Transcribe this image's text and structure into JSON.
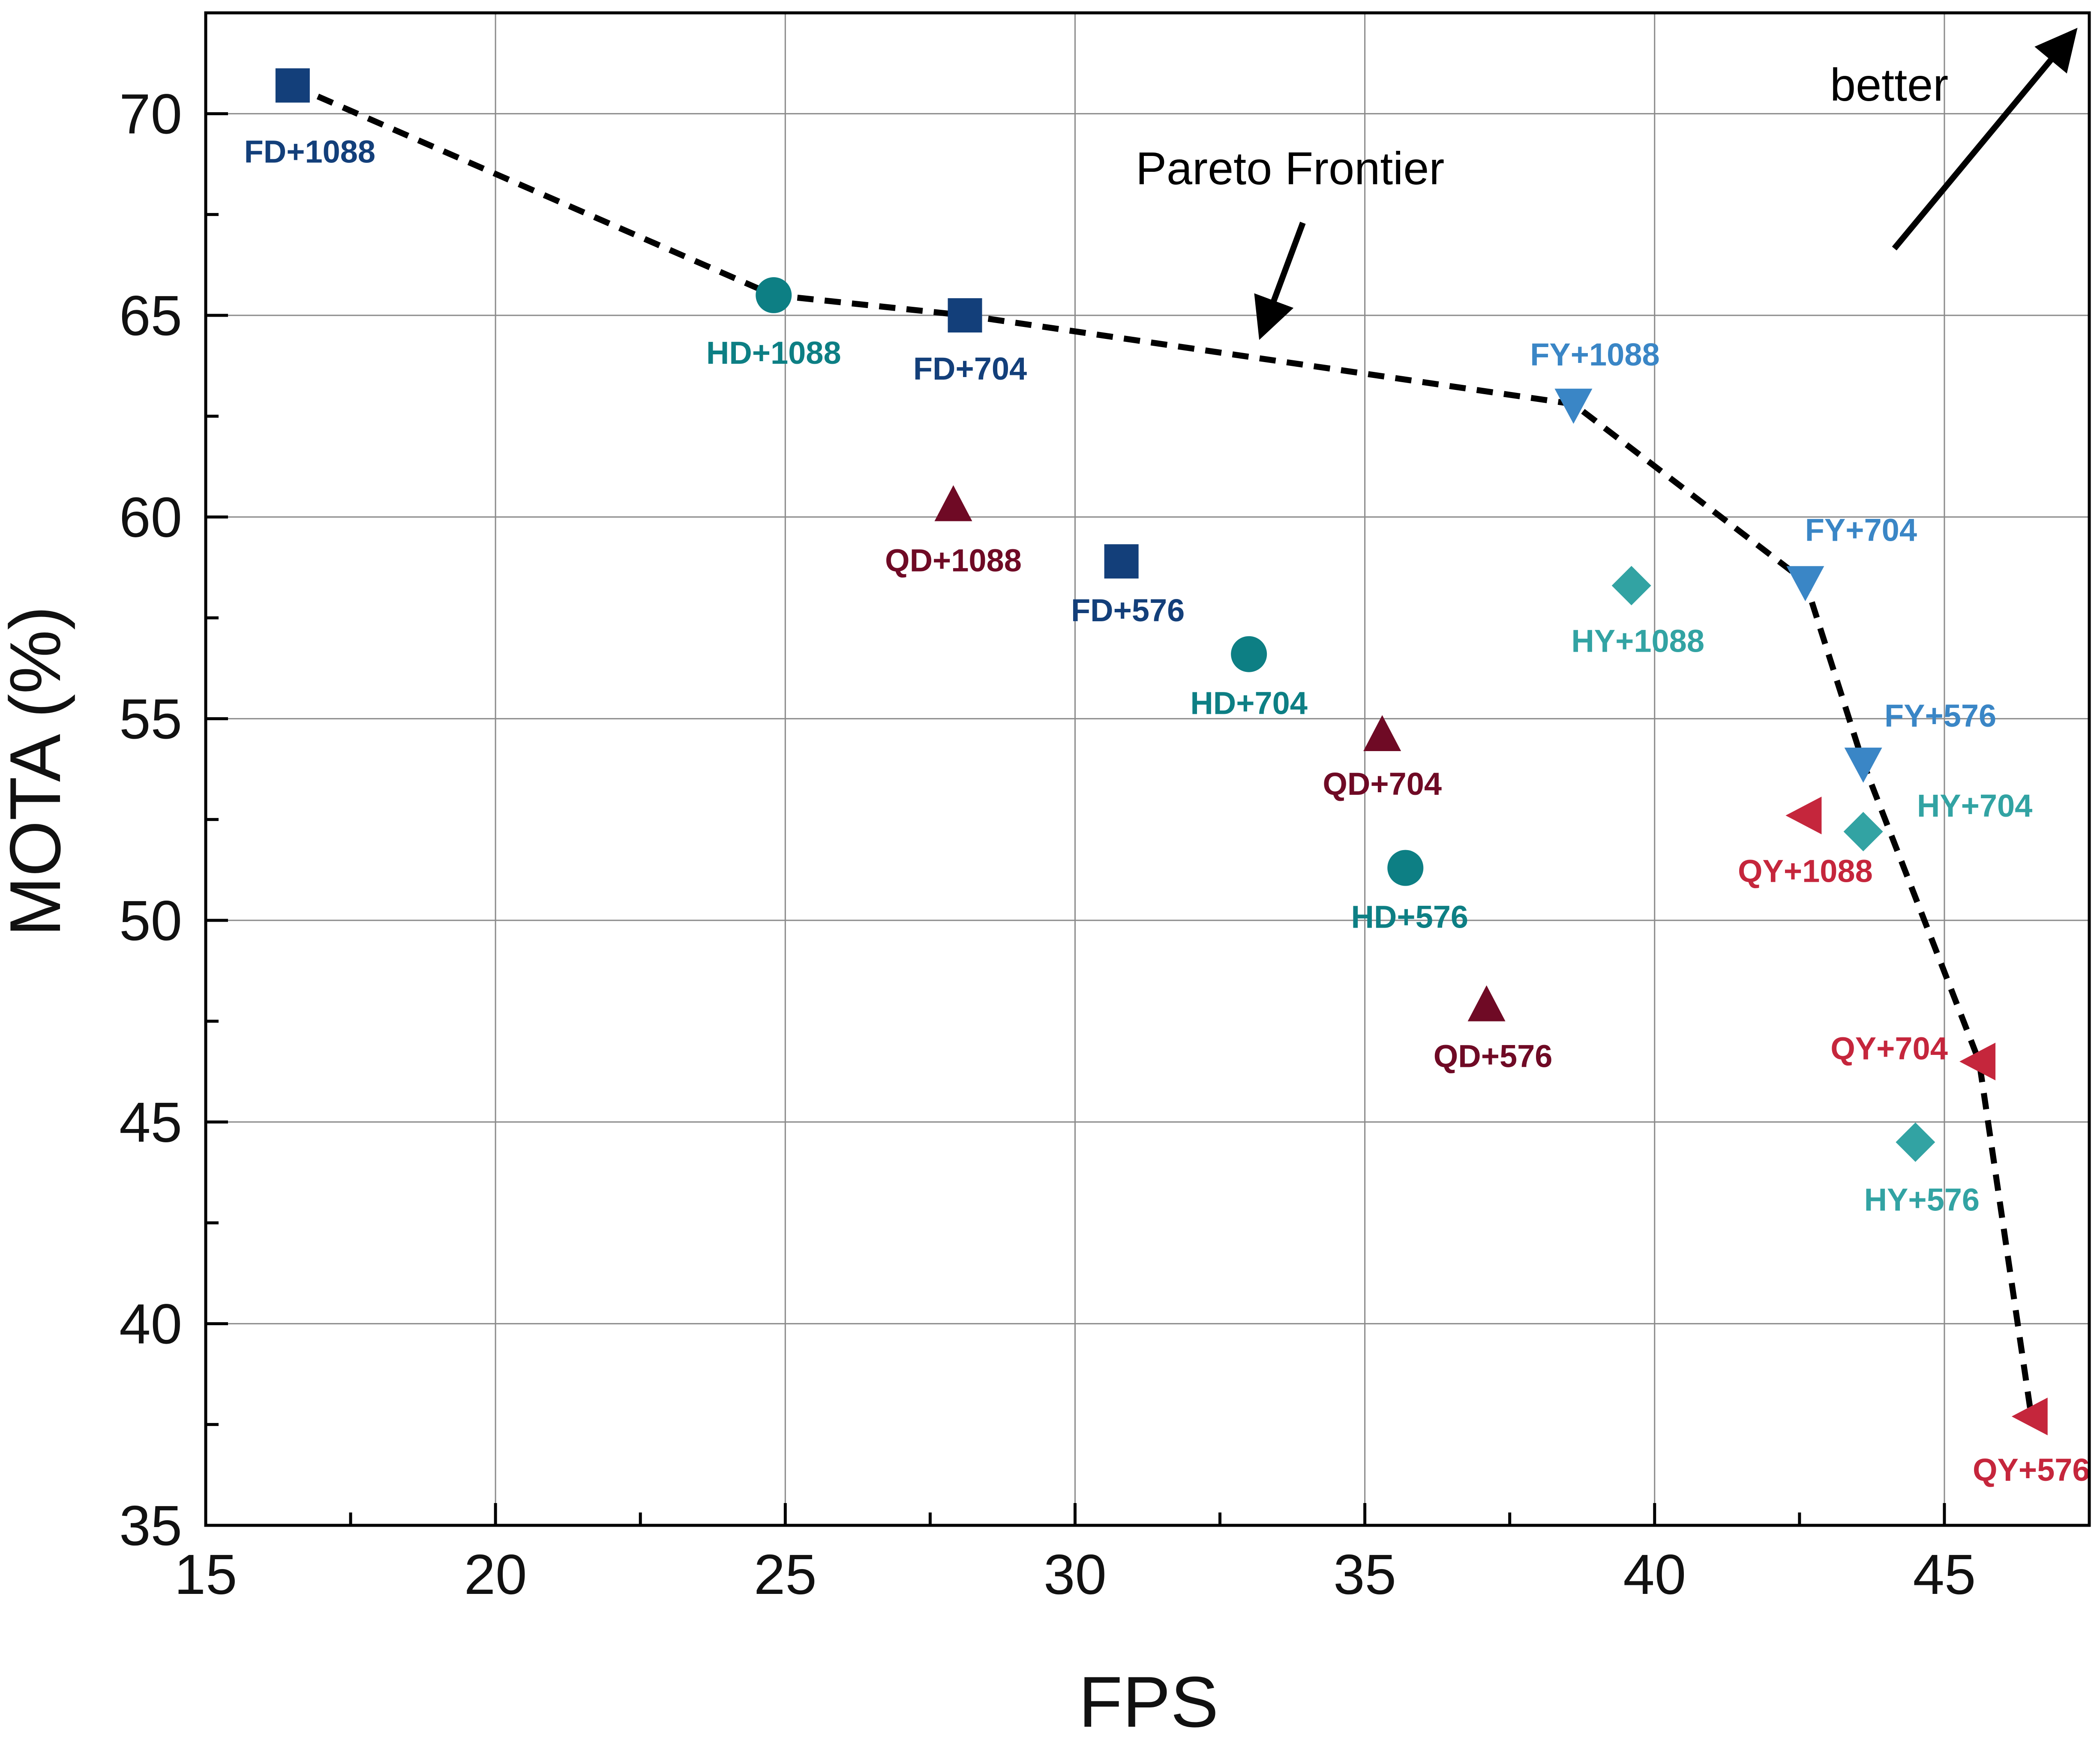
{
  "chart_data": {
    "type": "scatter",
    "title": "",
    "xlabel": "FPS",
    "ylabel": "MOTA (%)",
    "xlim": [
      15,
      47.5
    ],
    "ylim": [
      35,
      72.5
    ],
    "xticks": [
      15,
      20,
      25,
      30,
      35,
      40,
      45
    ],
    "yticks": [
      35,
      40,
      45,
      50,
      55,
      60,
      65,
      70
    ],
    "grid": true,
    "colors": {
      "FD": "#133f7a",
      "HD": "#0d7f84",
      "QD": "#6f0a25",
      "FY": "#3a86c6",
      "HY": "#32a3a3",
      "QY": "#c5263c"
    },
    "series": [
      {
        "group": "FD",
        "marker": "square",
        "points": [
          {
            "label": "FD+1088",
            "x": 16.5,
            "y": 70.7
          },
          {
            "label": "FD+704",
            "x": 28.1,
            "y": 65.0
          },
          {
            "label": "FD+576",
            "x": 30.8,
            "y": 58.9
          }
        ]
      },
      {
        "group": "HD",
        "marker": "circle",
        "points": [
          {
            "label": "HD+1088",
            "x": 24.8,
            "y": 65.5
          },
          {
            "label": "HD+704",
            "x": 33.0,
            "y": 56.6
          },
          {
            "label": "HD+576",
            "x": 35.7,
            "y": 51.3
          }
        ]
      },
      {
        "group": "QD",
        "marker": "triangle-up",
        "points": [
          {
            "label": "QD+1088",
            "x": 27.9,
            "y": 60.3
          },
          {
            "label": "QD+704",
            "x": 35.3,
            "y": 54.6
          },
          {
            "label": "QD+576",
            "x": 37.1,
            "y": 47.9
          }
        ]
      },
      {
        "group": "FY",
        "marker": "triangle-down",
        "points": [
          {
            "label": "FY+1088",
            "x": 38.6,
            "y": 62.8
          },
          {
            "label": "FY+704",
            "x": 42.6,
            "y": 58.4
          },
          {
            "label": "FY+576",
            "x": 43.6,
            "y": 53.9
          }
        ]
      },
      {
        "group": "HY",
        "marker": "diamond",
        "points": [
          {
            "label": "HY+1088",
            "x": 39.6,
            "y": 58.3
          },
          {
            "label": "HY+704",
            "x": 43.6,
            "y": 52.2
          },
          {
            "label": "HY+576",
            "x": 44.5,
            "y": 44.5
          }
        ]
      },
      {
        "group": "QY",
        "marker": "triangle-left",
        "points": [
          {
            "label": "QY+1088",
            "x": 42.6,
            "y": 52.6
          },
          {
            "label": "QY+704",
            "x": 45.6,
            "y": 46.5
          },
          {
            "label": "QY+576",
            "x": 46.5,
            "y": 37.7
          }
        ]
      }
    ],
    "frontier": {
      "label": "Pareto Frontier",
      "points": [
        [
          16.5,
          70.7
        ],
        [
          24.8,
          65.5
        ],
        [
          28.1,
          65.0
        ],
        [
          38.6,
          62.8
        ],
        [
          42.6,
          58.4
        ],
        [
          43.6,
          53.9
        ],
        [
          45.6,
          46.5
        ],
        [
          46.5,
          37.7
        ]
      ]
    },
    "annotations": {
      "frontier_arrow_label": "Pareto Frontier",
      "better_label": "better"
    }
  }
}
